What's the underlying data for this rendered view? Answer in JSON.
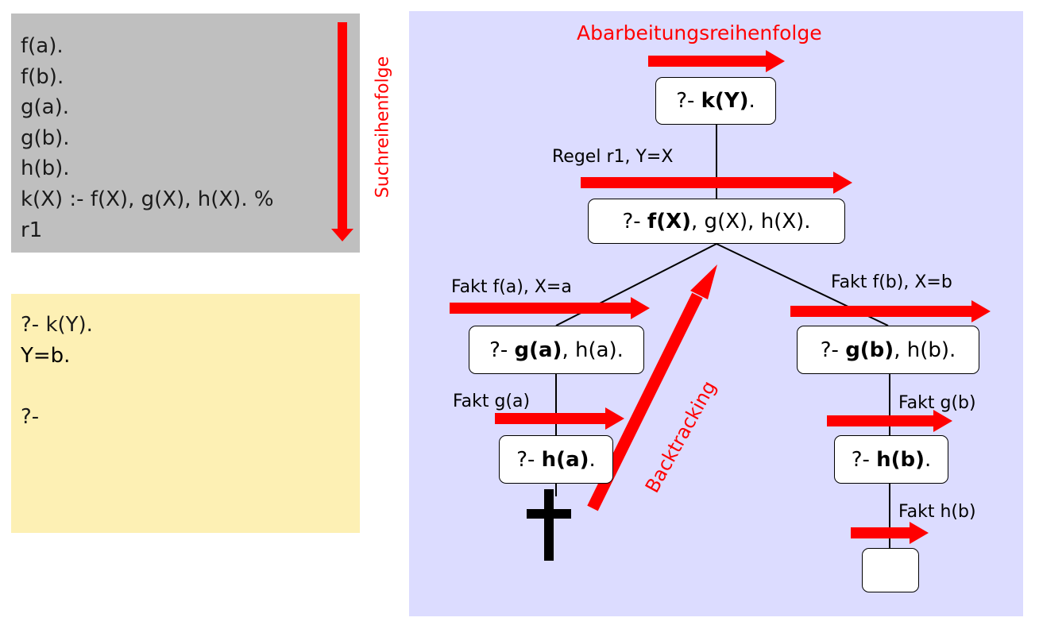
{
  "program": {
    "lines": [
      "f(a).",
      "f(b).",
      "g(a).",
      "g(b).",
      "h(b).",
      "k(X) :- f(X), g(X), h(X). %",
      "r1"
    ],
    "search_order_label": "Suchreihenfolge"
  },
  "query": {
    "lines": [
      "?- k(Y).",
      "Y=b.",
      "",
      "?-"
    ]
  },
  "tree": {
    "processing_order_label": "Abarbeitungsreihenfolge",
    "backtracking_label": "Backtracking",
    "root": {
      "prefix": "?- ",
      "bold": "k(Y)",
      "rest": "."
    },
    "rule_label": "Regel r1, Y=X",
    "level1": {
      "prefix": "?- ",
      "bold": "f(X)",
      "rest": ", g(X), h(X)."
    },
    "left_fact_label": "Fakt f(a), X=a",
    "right_fact_label": "Fakt f(b), X=b",
    "left_goal": {
      "prefix": "?- ",
      "bold": "g(a)",
      "rest": ", h(a)."
    },
    "right_goal": {
      "prefix": "?- ",
      "bold": "g(b)",
      "rest": ", h(b)."
    },
    "left_fact_g_label": "Fakt g(a)",
    "right_fact_g_label": "Fakt g(b)",
    "left_h": {
      "prefix": "?- ",
      "bold": "h(a)",
      "rest": "."
    },
    "right_h": {
      "prefix": "?- ",
      "bold": "h(b)",
      "rest": "."
    },
    "right_fact_h_label": "Fakt h(b)",
    "empty_goal": "",
    "failure_symbol": "dagger-icon"
  },
  "colors": {
    "arrow": "#ff0000",
    "program_bg": "#bfbfbf",
    "query_bg": "#fdf0b4",
    "tree_bg": "#dcdcff"
  }
}
